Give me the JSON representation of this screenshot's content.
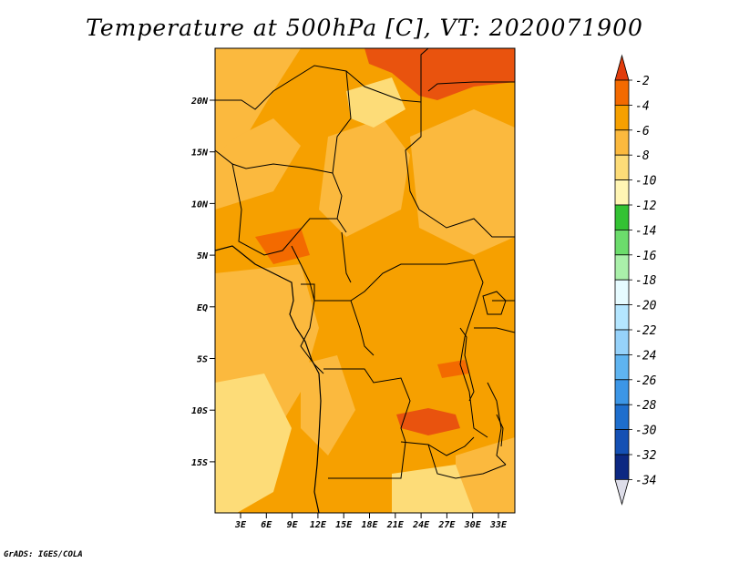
{
  "map": {
    "title": "Temperature at 500hPa [C], VT: 2020071900",
    "lat_ticks": [
      "20N",
      "15N",
      "10N",
      "5N",
      "EQ",
      "5S",
      "10S",
      "15S"
    ],
    "lon_ticks": [
      "3E",
      "6E",
      "9E",
      "12E",
      "15E",
      "18E",
      "21E",
      "24E",
      "27E",
      "30E",
      "33E"
    ],
    "credit": "GrADS: IGES/COLA"
  },
  "colorbar": {
    "labels": [
      "-2",
      "-4",
      "-6",
      "-8",
      "-10",
      "-12",
      "-14",
      "-16",
      "-18",
      "-20",
      "-22",
      "-24",
      "-26",
      "-28",
      "-30",
      "-32",
      "-34"
    ],
    "colors": [
      "#e13c0c",
      "#f36a00",
      "#f6a000",
      "#fbb93e",
      "#fddc78",
      "#fff5b4",
      "#33c233",
      "#6cdc6c",
      "#aaf0aa",
      "#e6fbff",
      "#b4e6ff",
      "#96d2fa",
      "#5fb4f0",
      "#3c96e6",
      "#1e6ecd",
      "#1450b4",
      "#0c2882",
      "#dddde9"
    ]
  },
  "field_colors": {
    "warm": "#e9530e",
    "orange": "#f6a000",
    "light_orange": "#fbb93e",
    "yellow": "#fddc78"
  }
}
